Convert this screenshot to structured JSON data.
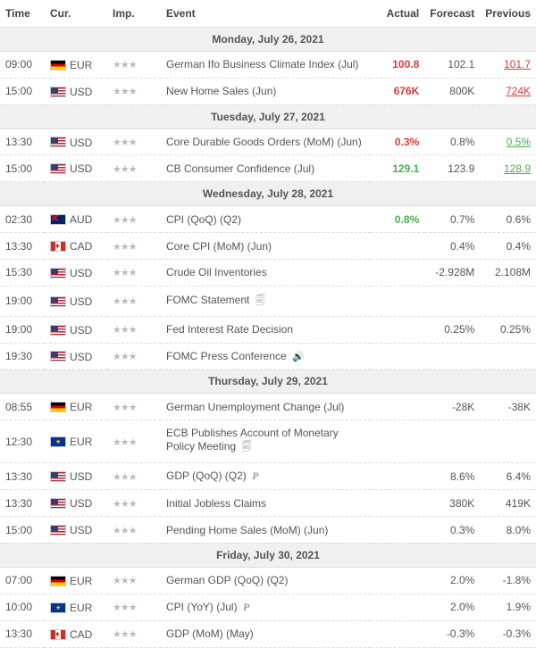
{
  "headers": {
    "time": "Time",
    "cur": "Cur.",
    "imp": "Imp.",
    "event": "Event",
    "actual": "Actual",
    "forecast": "Forecast",
    "previous": "Previous"
  },
  "colors": {
    "positive": "#4cae4c",
    "negative": "#d43f3a",
    "text": "#555555",
    "header_bg": "#f0f0f0",
    "border": "#dddddd"
  },
  "days": [
    {
      "label": "Monday, July 26, 2021",
      "rows": [
        {
          "time": "09:00",
          "cur": "EUR",
          "flag": "eur",
          "imp": 3,
          "event": "German Ifo Business Climate Index (Jul)",
          "actual": "100.8",
          "actual_cls": "red",
          "forecast": "102.1",
          "previous": "101.7",
          "prev_cls": "prev-red"
        },
        {
          "time": "15:00",
          "cur": "USD",
          "flag": "usd",
          "imp": 3,
          "event": "New Home Sales (Jun)",
          "actual": "676K",
          "actual_cls": "red",
          "forecast": "800K",
          "previous": "724K",
          "prev_cls": "prev-red"
        }
      ]
    },
    {
      "label": "Tuesday, July 27, 2021",
      "rows": [
        {
          "time": "13:30",
          "cur": "USD",
          "flag": "usd",
          "imp": 3,
          "event": "Core Durable Goods Orders (MoM) (Jun)",
          "actual": "0.3%",
          "actual_cls": "red",
          "forecast": "0.8%",
          "previous": "0.5%",
          "prev_cls": "prev-green"
        },
        {
          "time": "15:00",
          "cur": "USD",
          "flag": "usd",
          "imp": 3,
          "event": "CB Consumer Confidence (Jul)",
          "actual": "129.1",
          "actual_cls": "green",
          "forecast": "123.9",
          "previous": "128.9",
          "prev_cls": "prev-green"
        }
      ]
    },
    {
      "label": "Wednesday, July 28, 2021",
      "rows": [
        {
          "time": "02:30",
          "cur": "AUD",
          "flag": "aud",
          "imp": 3,
          "event": "CPI (QoQ) (Q2)",
          "actual": "0.8%",
          "actual_cls": "green",
          "forecast": "0.7%",
          "previous": "0.6%"
        },
        {
          "time": "13:30",
          "cur": "CAD",
          "flag": "cad",
          "imp": 3,
          "event": "Core CPI (MoM) (Jun)",
          "forecast": "0.4%",
          "previous": "0.4%"
        },
        {
          "time": "15:30",
          "cur": "USD",
          "flag": "usd",
          "imp": 3,
          "event": "Crude Oil Inventories",
          "forecast": "-2.928M",
          "previous": "2.108M"
        },
        {
          "time": "19:00",
          "cur": "USD",
          "flag": "usd",
          "imp": 3,
          "event": "FOMC Statement",
          "icon": "doc"
        },
        {
          "time": "19:00",
          "cur": "USD",
          "flag": "usd",
          "imp": 3,
          "event": "Fed Interest Rate Decision",
          "forecast": "0.25%",
          "previous": "0.25%"
        },
        {
          "time": "19:30",
          "cur": "USD",
          "flag": "usd",
          "imp": 3,
          "event": "FOMC Press Conference",
          "icon": "audio"
        }
      ]
    },
    {
      "label": "Thursday, July 29, 2021",
      "rows": [
        {
          "time": "08:55",
          "cur": "EUR",
          "flag": "eur",
          "imp": 3,
          "event": "German Unemployment Change (Jul)",
          "forecast": "-28K",
          "previous": "-38K"
        },
        {
          "time": "12:30",
          "cur": "EUR",
          "flag": "eu",
          "imp": 3,
          "event": "ECB Publishes Account of Monetary Policy Meeting",
          "icon": "doc"
        },
        {
          "time": "13:30",
          "cur": "USD",
          "flag": "usd",
          "imp": 3,
          "event": "GDP (QoQ) (Q2)",
          "icon": "p",
          "forecast": "8.6%",
          "previous": "6.4%"
        },
        {
          "time": "13:30",
          "cur": "USD",
          "flag": "usd",
          "imp": 3,
          "event": "Initial Jobless Claims",
          "forecast": "380K",
          "previous": "419K"
        },
        {
          "time": "15:00",
          "cur": "USD",
          "flag": "usd",
          "imp": 3,
          "event": "Pending Home Sales (MoM) (Jun)",
          "forecast": "0.3%",
          "previous": "8.0%"
        }
      ]
    },
    {
      "label": "Friday, July 30, 2021",
      "rows": [
        {
          "time": "07:00",
          "cur": "EUR",
          "flag": "eur",
          "imp": 3,
          "event": "German GDP (QoQ) (Q2)",
          "forecast": "2.0%",
          "previous": "-1.8%"
        },
        {
          "time": "10:00",
          "cur": "EUR",
          "flag": "eu",
          "imp": 3,
          "event": "CPI (YoY) (Jul)",
          "icon": "p",
          "forecast": "2.0%",
          "previous": "1.9%"
        },
        {
          "time": "13:30",
          "cur": "CAD",
          "flag": "cad",
          "imp": 3,
          "event": "GDP (MoM) (May)",
          "forecast": "-0.3%",
          "previous": "-0.3%"
        }
      ]
    }
  ]
}
